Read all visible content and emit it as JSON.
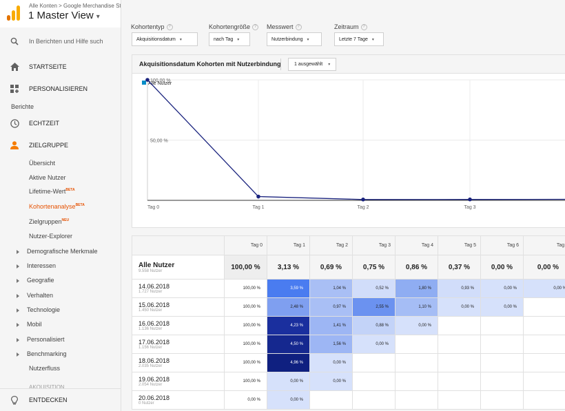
{
  "account": {
    "breadcrumb": "Alle Konten > Google Merchandise Store",
    "view": "1 Master View",
    "logo_colors": [
      "#f9ab00",
      "#e37400"
    ]
  },
  "sidebar": {
    "search_label": "In Berichten und Hilfe such",
    "startseite": "STARTSEITE",
    "personalisieren": "PERSONALISIEREN",
    "section_label": "Berichte",
    "echtzeit": "ECHTZEIT",
    "zielgruppe": "ZIELGRUPPE",
    "zielgruppe_items": [
      {
        "label": "Übersicht",
        "badge": ""
      },
      {
        "label": "Aktive Nutzer",
        "badge": ""
      },
      {
        "label": "Lifetime-Wert",
        "badge": "BETA"
      },
      {
        "label": "Kohortenanalyse",
        "badge": "BETA"
      },
      {
        "label": "Zielgruppen",
        "badge": "NEU"
      },
      {
        "label": "Nutzer-Explorer",
        "badge": ""
      }
    ],
    "expandable_items": [
      "Demografische Merkmale",
      "Interessen",
      "Geografie",
      "Verhalten",
      "Technologie",
      "Mobil",
      "Personalisiert",
      "Benchmarking"
    ],
    "nutzerfluss": "Nutzerfluss",
    "akquisition": "AKQUISITION",
    "entdecken": "ENTDECKEN",
    "accent": "#e65100"
  },
  "filters": [
    {
      "label": "Kohortentyp",
      "value": "Akquisitionsdatum"
    },
    {
      "label": "Kohortengröße",
      "value": "nach Tag"
    },
    {
      "label": "Messwert",
      "value": "Nutzerbindung"
    },
    {
      "label": "Zeitraum",
      "value": "Letzte 7 Tage"
    }
  ],
  "panel": {
    "title": "Akquisitionsdatum Kohorten mit Nutzerbindung",
    "selector": "1 ausgewählt"
  },
  "chart_data": {
    "type": "line",
    "x": [
      "Tag 0",
      "Tag 1",
      "Tag 2",
      "Tag 3",
      "Tag 4"
    ],
    "series": [
      {
        "name": "Alle Nutzer",
        "values": [
          100,
          3.13,
          0.69,
          0.75,
          0.86
        ],
        "color": "#1a237e"
      }
    ],
    "y_tick_labels": [
      "100,00 %",
      "50,00 %"
    ],
    "y_ticks": [
      100,
      50
    ],
    "ylim": [
      0,
      100
    ],
    "legend_color": "#058dc7"
  },
  "table": {
    "columns": [
      "Tag 0",
      "Tag 1",
      "Tag 2",
      "Tag 3",
      "Tag 4",
      "Tag 5",
      "Tag 6",
      "Tag 7"
    ],
    "total": {
      "label": "Alle Nutzer",
      "sub": "9.558 Nutzer",
      "values": [
        "100,00 %",
        "3,13 %",
        "0,69 %",
        "0,75 %",
        "0,86 %",
        "0,37 %",
        "0,00 %",
        "0,00 %"
      ]
    },
    "rows": [
      {
        "date": "14.06.2018",
        "users": "1.727 Nutzer",
        "values": [
          "100,00 %",
          "3,59 %",
          "1,04 %",
          "0,52 %",
          "1,80 %",
          "0,93 %",
          "0,00 %",
          "0,00 %"
        ],
        "colors": [
          "",
          "#4a7cf0",
          "#a9bff5",
          "#d1ddfa",
          "#8fadf2",
          "#d1ddfa",
          "#d6e1fb",
          "#d6e1fb"
        ]
      },
      {
        "date": "15.06.2018",
        "users": "1.450 Nutzer",
        "values": [
          "100,00 %",
          "2,48 %",
          "0,97 %",
          "2,55 %",
          "1,10 %",
          "0,00 %",
          "0,00 %",
          ""
        ],
        "colors": [
          "",
          "#7f9ff0",
          "#a9bff5",
          "#6b92f0",
          "#a5bdf5",
          "#d6e1fb",
          "#d6e1fb",
          ""
        ]
      },
      {
        "date": "16.06.2018",
        "users": "1.136 Nutzer",
        "values": [
          "100,00 %",
          "4,23 %",
          "1,41 %",
          "0,88 %",
          "0,00 %",
          "",
          "",
          ""
        ],
        "colors": [
          "",
          "#1a2f9e",
          "#9db6f4",
          "#c3d3f8",
          "#d6e1fb",
          "",
          "",
          ""
        ]
      },
      {
        "date": "17.06.2018",
        "users": "1.156 Nutzer",
        "values": [
          "100,00 %",
          "4,50 %",
          "1,56 %",
          "0,00 %",
          "",
          "",
          "",
          ""
        ],
        "colors": [
          "",
          "#15288f",
          "#9db6f4",
          "#d6e1fb",
          "",
          "",
          "",
          ""
        ]
      },
      {
        "date": "18.06.2018",
        "users": "2.035 Nutzer",
        "values": [
          "100,00 %",
          "4,96 %",
          "0,00 %",
          "",
          "",
          "",
          "",
          ""
        ],
        "colors": [
          "",
          "#0f2080",
          "#d6e1fb",
          "",
          "",
          "",
          "",
          ""
        ]
      },
      {
        "date": "19.06.2018",
        "users": "2.054 Nutzer",
        "values": [
          "100,00 %",
          "0,00 %",
          "0,00 %",
          "",
          "",
          "",
          "",
          ""
        ],
        "colors": [
          "",
          "#d6e1fb",
          "#d6e1fb",
          "",
          "",
          "",
          "",
          ""
        ]
      },
      {
        "date": "20.06.2018",
        "users": "0 Nutzer",
        "values": [
          "0,00 %",
          "0,00 %",
          "",
          "",
          "",
          "",
          "",
          ""
        ],
        "colors": [
          "",
          "#d6e1fb",
          "",
          "",
          "",
          "",
          "",
          ""
        ]
      }
    ]
  }
}
